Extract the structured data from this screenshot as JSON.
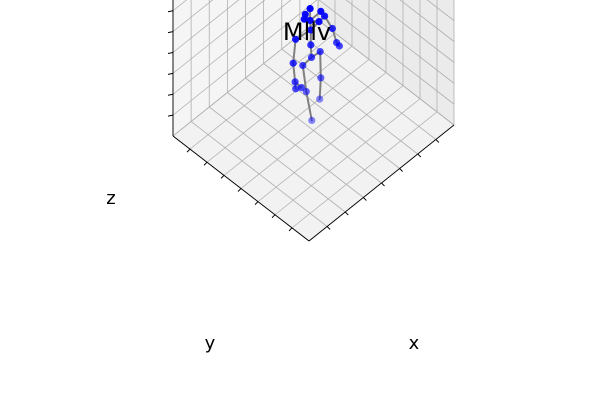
{
  "chart_data": {
    "type": "scatter",
    "title": "Mllv",
    "xlabel": "x",
    "ylabel": "y",
    "zlabel": "z",
    "grid": true,
    "tick_labels": "none",
    "point_color": "#0000ff",
    "bone_color": "#808080",
    "joints": [
      {
        "name": "head-top",
        "x": 0.0,
        "y": 0.05,
        "z": 1.8
      },
      {
        "name": "head-left",
        "x": -0.08,
        "y": 0.05,
        "z": 1.7
      },
      {
        "name": "head-right",
        "x": 0.1,
        "y": 0.0,
        "z": 1.7
      },
      {
        "name": "head-front",
        "x": 0.02,
        "y": -0.06,
        "z": 1.66
      },
      {
        "name": "head-back",
        "x": -0.02,
        "y": 0.1,
        "z": 1.68
      },
      {
        "name": "neck",
        "x": 0.0,
        "y": 0.05,
        "z": 1.6
      },
      {
        "name": "thorax",
        "x": 0.0,
        "y": 0.04,
        "z": 1.45
      },
      {
        "name": "r-shoulder",
        "x": -0.2,
        "y": 0.05,
        "z": 1.48
      },
      {
        "name": "r-elbow",
        "x": -0.28,
        "y": 0.0,
        "z": 1.2
      },
      {
        "name": "r-wrist",
        "x": -0.3,
        "y": -0.05,
        "z": 0.95
      },
      {
        "name": "r-hand-1",
        "x": -0.32,
        "y": -0.08,
        "z": 0.88
      },
      {
        "name": "r-hand-2",
        "x": -0.26,
        "y": -0.1,
        "z": 0.86
      },
      {
        "name": "l-shoulder",
        "x": 0.2,
        "y": 0.05,
        "z": 1.48
      },
      {
        "name": "l-elbow",
        "x": 0.28,
        "y": 0.02,
        "z": 1.22
      },
      {
        "name": "l-wrist",
        "x": 0.3,
        "y": -0.02,
        "z": 1.0
      },
      {
        "name": "l-hand",
        "x": 0.32,
        "y": -0.04,
        "z": 0.94
      },
      {
        "name": "spine",
        "x": 0.0,
        "y": 0.04,
        "z": 1.2
      },
      {
        "name": "pelvis",
        "x": 0.0,
        "y": 0.03,
        "z": 1.0
      },
      {
        "name": "r-hip",
        "x": -0.12,
        "y": 0.03,
        "z": 0.98
      },
      {
        "name": "r-knee",
        "x": -0.1,
        "y": 0.0,
        "z": 0.55
      },
      {
        "name": "r-ankle",
        "x": -0.08,
        "y": -0.06,
        "z": 0.1
      },
      {
        "name": "l-hip",
        "x": 0.12,
        "y": 0.03,
        "z": 0.98
      },
      {
        "name": "l-knee",
        "x": 0.12,
        "y": 0.02,
        "z": 0.55
      },
      {
        "name": "l-ankle",
        "x": 0.16,
        "y": 0.08,
        "z": 0.1
      }
    ],
    "bones": [
      [
        0,
        5
      ],
      [
        1,
        5
      ],
      [
        2,
        5
      ],
      [
        3,
        5
      ],
      [
        4,
        5
      ],
      [
        5,
        6
      ],
      [
        6,
        7
      ],
      [
        7,
        8
      ],
      [
        8,
        9
      ],
      [
        9,
        10
      ],
      [
        9,
        11
      ],
      [
        6,
        12
      ],
      [
        12,
        13
      ],
      [
        13,
        14
      ],
      [
        14,
        15
      ],
      [
        6,
        16
      ],
      [
        16,
        17
      ],
      [
        17,
        18
      ],
      [
        18,
        19
      ],
      [
        19,
        20
      ],
      [
        17,
        21
      ],
      [
        21,
        22
      ],
      [
        22,
        23
      ]
    ]
  }
}
